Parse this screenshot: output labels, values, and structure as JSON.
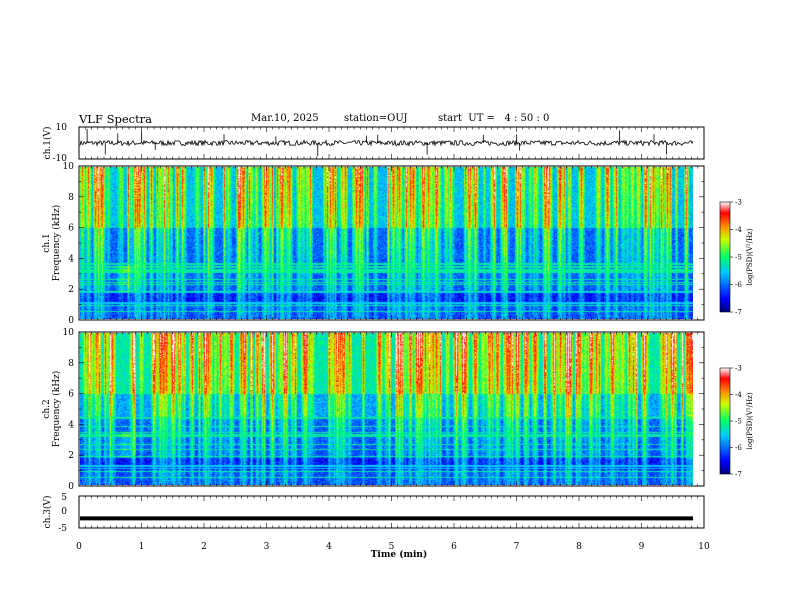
{
  "header": {
    "title": "VLF Spectra",
    "date": "Mar.10, 2025",
    "station": "station=OUJ",
    "start_ut": "start  UT =   4 : 50 : 0"
  },
  "chart_data": [
    {
      "type": "line",
      "name": "ch1-waveform",
      "ylabel": "ch.1(V)",
      "ylim": [
        -10,
        10
      ],
      "yticks": [
        "10",
        "-10"
      ],
      "xlim": [
        0,
        10
      ],
      "baseline": 0,
      "spikes_min": [
        0.13,
        0.42,
        0.62,
        1.0,
        1.22,
        2.32,
        3.15,
        3.82,
        4.6,
        4.78,
        5.57,
        6.47,
        7.0,
        7.05,
        8.65,
        9.2,
        9.4
      ]
    },
    {
      "type": "heatmap",
      "name": "ch1-spectrogram",
      "ylabel_line1": "ch.1",
      "ylabel_line2": "Frequency (kHz)",
      "xlim": [
        0,
        9.85
      ],
      "ylim": [
        0,
        10
      ],
      "yticks": [
        "0",
        "2",
        "4",
        "6",
        "8",
        "10"
      ],
      "colorbar": {
        "min": -7,
        "max": -3,
        "ticks": [
          "-3",
          "-4",
          "-5",
          "-6",
          "-7"
        ],
        "label": "log(PSD)(V²/Hz)"
      }
    },
    {
      "type": "heatmap",
      "name": "ch2-spectrogram",
      "ylabel_line1": "ch.2",
      "ylabel_line2": "Frequency (kHz)",
      "xlim": [
        0,
        9.85
      ],
      "ylim": [
        0,
        10
      ],
      "yticks": [
        "0",
        "2",
        "4",
        "6",
        "8",
        "10"
      ],
      "colorbar": {
        "min": -7,
        "max": -3,
        "ticks": [
          "-3",
          "-4",
          "-5",
          "-6",
          "-7"
        ],
        "label": "log(PSD)(V²/Hz)"
      }
    },
    {
      "type": "line",
      "name": "ch3-waveform",
      "ylabel": "ch.3(V)",
      "ylim": [
        -5,
        5
      ],
      "yticks": [
        "5",
        "0",
        "-5"
      ],
      "xlim": [
        0,
        9.85
      ],
      "value": -2
    }
  ],
  "xaxis": {
    "label": "Time (min)",
    "ticks": [
      "0",
      "1",
      "2",
      "3",
      "4",
      "5",
      "6",
      "7",
      "8",
      "9",
      "10"
    ]
  }
}
